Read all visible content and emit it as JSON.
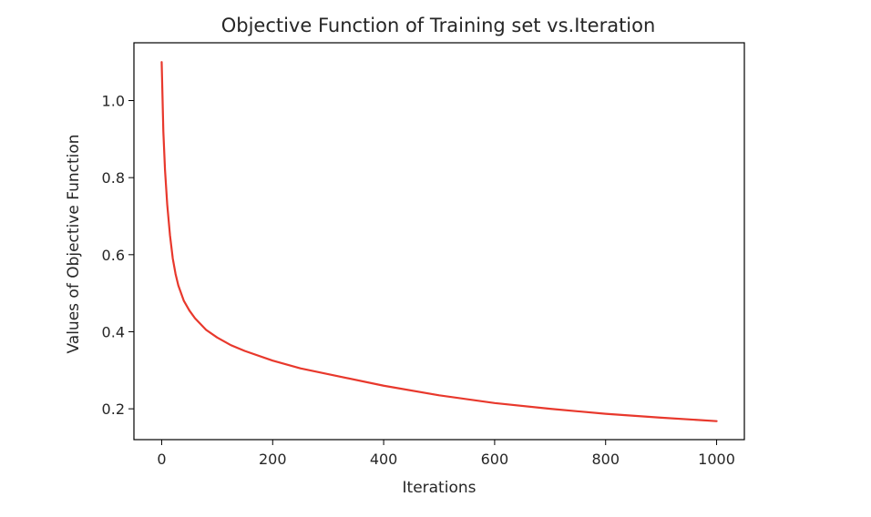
{
  "chart_data": {
    "type": "line",
    "title": "Objective Function of Training set vs.Iteration",
    "xlabel": "Iterations",
    "ylabel": "Values of Objective Function",
    "xlim": [
      -50,
      1050
    ],
    "ylim": [
      0.12,
      1.15
    ],
    "xticks": [
      0,
      200,
      400,
      600,
      800,
      1000
    ],
    "xtick_labels": [
      "0",
      "200",
      "400",
      "600",
      "800",
      "1000"
    ],
    "yticks": [
      0.2,
      0.4,
      0.6,
      0.8,
      1.0
    ],
    "ytick_labels": [
      "0.2",
      "0.4",
      "0.6",
      "0.8",
      "1.0"
    ],
    "grid": false,
    "series": [
      {
        "color": "#e8382c",
        "x": [
          0,
          3,
          6,
          10,
          15,
          20,
          25,
          30,
          40,
          50,
          60,
          80,
          100,
          125,
          150,
          200,
          250,
          300,
          400,
          500,
          600,
          700,
          800,
          900,
          1000
        ],
        "y": [
          1.1,
          0.92,
          0.82,
          0.73,
          0.65,
          0.59,
          0.55,
          0.52,
          0.48,
          0.455,
          0.435,
          0.405,
          0.385,
          0.365,
          0.35,
          0.325,
          0.305,
          0.29,
          0.26,
          0.235,
          0.215,
          0.2,
          0.187,
          0.177,
          0.168
        ]
      }
    ]
  }
}
